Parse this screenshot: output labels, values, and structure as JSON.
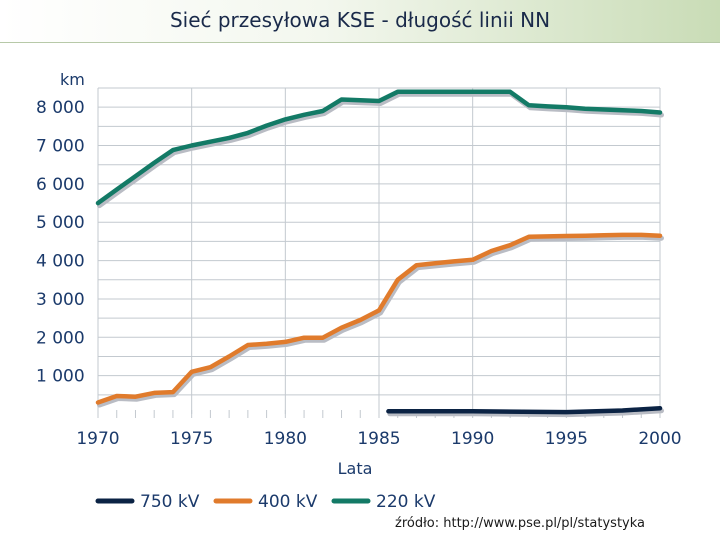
{
  "title": "Sieć przesyłowa KSE - długość linii NN",
  "source": "źródło: http://www.pse.pl/pl/statystyka",
  "colors": {
    "s750": "#0b2344",
    "s400": "#e07b2c",
    "s220": "#137a66",
    "grid": "#c3c9cf",
    "text": "#1b3a6b"
  },
  "chart_data": {
    "type": "line",
    "title": "Sieć przesyłowa KSE - długość linii NN",
    "unit_label": "km",
    "xlabel": "Lata",
    "ylabel": "km",
    "xlim": [
      1970,
      2000
    ],
    "ylim": [
      0,
      8500
    ],
    "grid": true,
    "legend_position": "bottom",
    "x_ticks": [
      1970,
      1975,
      1980,
      1985,
      1990,
      1995,
      2000
    ],
    "x_tick_labels": [
      "1970",
      "1975",
      "1980",
      "1985",
      "1990",
      "1995",
      "2000"
    ],
    "y_ticks": [
      1000,
      2000,
      3000,
      4000,
      5000,
      6000,
      7000,
      8000
    ],
    "y_tick_labels": [
      "1 000",
      "2 000",
      "3 000",
      "4 000",
      "5 000",
      "6 000",
      "7 000",
      "8 000"
    ],
    "series": [
      {
        "name": "750 kV",
        "x": [
          1985.5,
          1990,
          1995,
          1998,
          2000
        ],
        "values": [
          70,
          70,
          50,
          90,
          150
        ]
      },
      {
        "name": "400 kV",
        "x": [
          1970,
          1971,
          1972,
          1973,
          1974,
          1975,
          1976,
          1977,
          1978,
          1979,
          1980,
          1981,
          1982,
          1983,
          1984,
          1985,
          1986,
          1987,
          1988,
          1989,
          1990,
          1991,
          1992,
          1993,
          1994,
          1995,
          1996,
          1997,
          1998,
          1999,
          2000
        ],
        "values": [
          300,
          470,
          450,
          550,
          570,
          1100,
          1220,
          1500,
          1800,
          1830,
          1880,
          1990,
          1990,
          2250,
          2450,
          2700,
          3500,
          3880,
          3930,
          3980,
          4020,
          4250,
          4400,
          4620,
          4630,
          4640,
          4650,
          4660,
          4670,
          4670,
          4650
        ]
      },
      {
        "name": "220 kV",
        "x": [
          1970,
          1971,
          1972,
          1973,
          1974,
          1975,
          1976,
          1977,
          1978,
          1979,
          1980,
          1981,
          1982,
          1983,
          1984,
          1985,
          1986,
          1987,
          1988,
          1989,
          1990,
          1991,
          1992,
          1993,
          1994,
          1995,
          1996,
          1997,
          1998,
          1999,
          2000
        ],
        "values": [
          5500,
          5850,
          6200,
          6550,
          6880,
          7000,
          7100,
          7200,
          7330,
          7520,
          7680,
          7800,
          7900,
          8200,
          8180,
          8160,
          8400,
          8400,
          8400,
          8400,
          8400,
          8400,
          8400,
          8050,
          8020,
          8000,
          7960,
          7940,
          7920,
          7900,
          7860
        ]
      }
    ]
  }
}
